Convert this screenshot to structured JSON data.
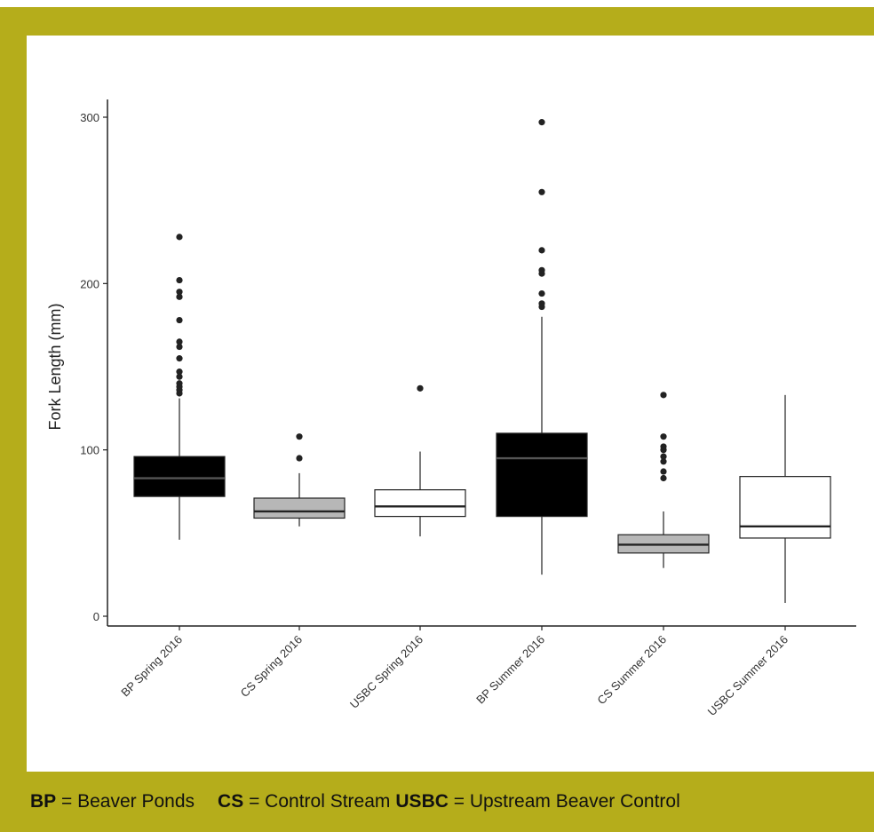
{
  "legend": {
    "items": [
      {
        "abbr": "BP",
        "text": " = Beaver Ponds"
      },
      {
        "abbr": "CS",
        "text": " = Control Stream"
      },
      {
        "abbr": "USBC",
        "text": " = Upstream Beaver Control"
      }
    ]
  },
  "colors": {
    "frame": "#b5ad1b",
    "black_box": "#000000",
    "grey_box": "#b7b7b7",
    "white_box": "#ffffff"
  },
  "chart_data": {
    "type": "box",
    "ylabel": "Fork Length (mm)",
    "xlabel": "",
    "ylim": [
      0,
      300
    ],
    "yticks": [
      0,
      100,
      200,
      300
    ],
    "grid": false,
    "categories": [
      "BP Spring 2016",
      "CS Spring 2016",
      "USBC Spring 2016",
      "BP Summer 2016",
      "CS Summer 2016",
      "USBC Summer 2016"
    ],
    "boxes": [
      {
        "category": "BP Spring 2016",
        "fill": "black",
        "min": 46,
        "q1": 72,
        "median": 83,
        "q3": 96,
        "max": 131,
        "outliers": [
          134,
          136,
          138,
          140,
          144,
          147,
          155,
          162,
          165,
          178,
          192,
          195,
          202,
          228
        ]
      },
      {
        "category": "CS Spring 2016",
        "fill": "grey",
        "min": 54,
        "q1": 59,
        "median": 63,
        "q3": 71,
        "max": 86,
        "outliers": [
          95,
          108
        ]
      },
      {
        "category": "USBC Spring 2016",
        "fill": "white",
        "min": 48,
        "q1": 60,
        "median": 66,
        "q3": 76,
        "max": 99,
        "outliers": [
          137
        ]
      },
      {
        "category": "BP Summer 2016",
        "fill": "black",
        "min": 25,
        "q1": 60,
        "median": 95,
        "q3": 110,
        "max": 180,
        "outliers": [
          186,
          188,
          194,
          206,
          208,
          220,
          255,
          297
        ]
      },
      {
        "category": "CS Summer 2016",
        "fill": "grey",
        "min": 29,
        "q1": 38,
        "median": 43,
        "q3": 49,
        "max": 63,
        "outliers": [
          83,
          87,
          93,
          96,
          100,
          102,
          108,
          133
        ]
      },
      {
        "category": "USBC Summer 2016",
        "fill": "white",
        "min": 8,
        "q1": 47,
        "median": 54,
        "q3": 84,
        "max": 133,
        "outliers": []
      }
    ]
  }
}
